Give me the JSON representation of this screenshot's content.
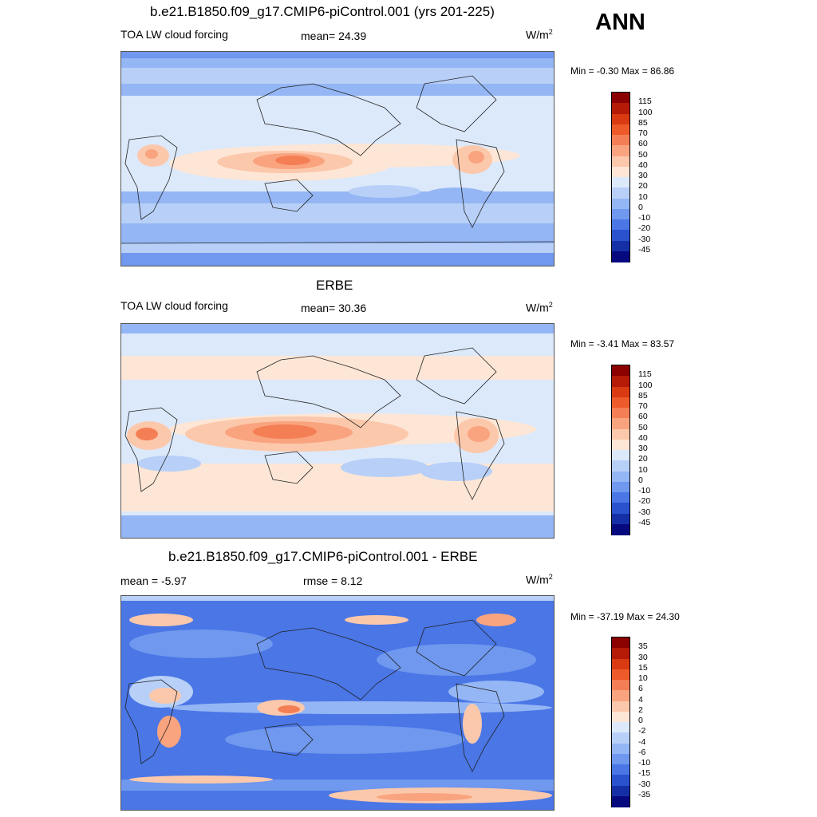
{
  "season": "ANN",
  "units_base": "W/m",
  "units_exp": "2",
  "panels": [
    {
      "id": "model",
      "title": "b.e21.B1850.f09_g17.CMIP6-piControl.001 (yrs 201-225)",
      "left_label": "TOA LW cloud forcing",
      "center_label": "mean=  24.39",
      "minmax": "Min =  -0.30 Max =  86.86",
      "colorbar": {
        "levels": [
          "115",
          "100",
          "85",
          "70",
          "60",
          "50",
          "40",
          "30",
          "20",
          "10",
          "0",
          "-10",
          "-20",
          "-30",
          "-45"
        ],
        "colors": [
          "#8b0000",
          "#b41a06",
          "#d93a12",
          "#ee5a2a",
          "#f57f55",
          "#f9a47f",
          "#fcc8ab",
          "#fde6d6",
          "#dce9fb",
          "#b8d0f8",
          "#94b6f4",
          "#6f98ee",
          "#4a76e6",
          "#2a52cf",
          "#1530a6",
          "#070a7e"
        ]
      }
    },
    {
      "id": "obs",
      "title": "ERBE",
      "left_label": "TOA LW cloud forcing",
      "center_label": "mean=  30.36",
      "minmax": "Min =  -3.41 Max =  83.57",
      "colorbar": {
        "levels": [
          "115",
          "100",
          "85",
          "70",
          "60",
          "50",
          "40",
          "30",
          "20",
          "10",
          "0",
          "-10",
          "-20",
          "-30",
          "-45"
        ],
        "colors": [
          "#8b0000",
          "#b41a06",
          "#d93a12",
          "#ee5a2a",
          "#f57f55",
          "#f9a47f",
          "#fcc8ab",
          "#fde6d6",
          "#dce9fb",
          "#b8d0f8",
          "#94b6f4",
          "#6f98ee",
          "#4a76e6",
          "#2a52cf",
          "#1530a6",
          "#070a7e"
        ]
      }
    },
    {
      "id": "diff",
      "title": "b.e21.B1850.f09_g17.CMIP6-piControl.001 - ERBE",
      "left_label": "mean =  -5.97",
      "center_label": "rmse =   8.12",
      "minmax": "Min = -37.19 Max =  24.30",
      "colorbar": {
        "levels": [
          "35",
          "30",
          "15",
          "10",
          "6",
          "4",
          "2",
          "0",
          "-2",
          "-4",
          "-6",
          "-10",
          "-15",
          "-30",
          "-35"
        ],
        "colors": [
          "#8b0000",
          "#b41a06",
          "#d93a12",
          "#ee5a2a",
          "#f57f55",
          "#f9a47f",
          "#fcc8ab",
          "#fde6d6",
          "#dce9fb",
          "#b8d0f8",
          "#94b6f4",
          "#6f98ee",
          "#4a76e6",
          "#2a52cf",
          "#1530a6",
          "#070a7e"
        ]
      }
    }
  ],
  "chart_data": [
    {
      "type": "heatmap",
      "title": "b.e21.B1850.f09_g17.CMIP6-piControl.001 (yrs 201-225)",
      "variable": "TOA LW cloud forcing",
      "units": "W/m2",
      "mean": 24.39,
      "min": -0.3,
      "max": 86.86,
      "contour_levels": [
        -45,
        -30,
        -20,
        -10,
        0,
        10,
        20,
        30,
        40,
        50,
        60,
        70,
        85,
        100,
        115
      ]
    },
    {
      "type": "heatmap",
      "title": "ERBE",
      "variable": "TOA LW cloud forcing",
      "units": "W/m2",
      "mean": 30.36,
      "min": -3.41,
      "max": 83.57,
      "contour_levels": [
        -45,
        -30,
        -20,
        -10,
        0,
        10,
        20,
        30,
        40,
        50,
        60,
        70,
        85,
        100,
        115
      ]
    },
    {
      "type": "heatmap",
      "title": "b.e21.B1850.f09_g17.CMIP6-piControl.001 - ERBE",
      "units": "W/m2",
      "mean": -5.97,
      "rmse": 8.12,
      "min": -37.19,
      "max": 24.3,
      "contour_levels": [
        -35,
        -30,
        -15,
        -10,
        -6,
        -4,
        -2,
        0,
        2,
        4,
        6,
        10,
        15,
        30,
        35
      ]
    }
  ]
}
